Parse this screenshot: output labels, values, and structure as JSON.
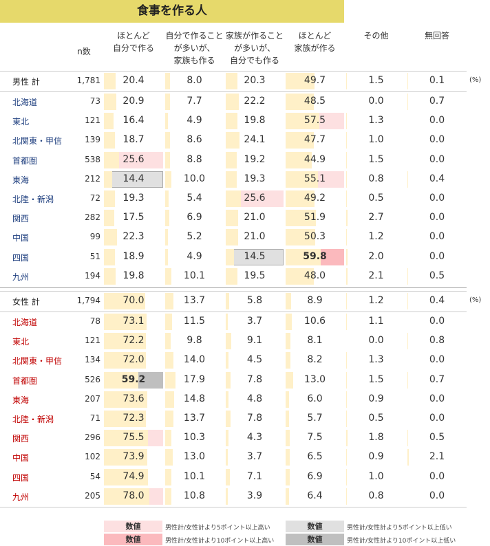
{
  "title": "食事を作る人",
  "headers": [
    [
      "n数"
    ],
    [
      "ほとんど",
      "自分で作る"
    ],
    [
      "自分で作ること",
      "が多いが、",
      "家族も作る"
    ],
    [
      "家族が作ること",
      "が多いが、",
      "自分でも作る"
    ],
    [
      "ほとんど",
      "家族が作る"
    ],
    [
      "その他"
    ],
    [
      "無回答"
    ]
  ],
  "unit": "(%)",
  "legend": [
    {
      "swatch": "数値",
      "text": "男性計/女性計より5ポイント以上高い",
      "color": "#fde0e1",
      "bold": false
    },
    {
      "swatch": "数値",
      "text": "男性計/女性計より10ポイント以上高い",
      "color": "#fbb9bd",
      "bold": true
    },
    {
      "swatch": "数値",
      "text": "男性計/女性計より5ポイント以上低い",
      "color": "#e0e0e0",
      "bold": false
    },
    {
      "swatch": "数値",
      "text": "男性計/女性計より10ポイント以上低い",
      "color": "#bfbfbf",
      "bold": true
    }
  ],
  "sections": [
    {
      "label_color": "#1f3f7f",
      "total": {
        "label": "男性 計",
        "n": "1,781",
        "values": [
          "20.4",
          "8.0",
          "20.3",
          "49.7",
          "1.5",
          "0.1"
        ]
      },
      "rows": [
        {
          "label": "北海道",
          "n": "73",
          "values": [
            "20.9",
            "7.7",
            "22.2",
            "48.5",
            "0.0",
            "0.7"
          ]
        },
        {
          "label": "東北",
          "n": "121",
          "values": [
            "16.4",
            "4.9",
            "19.8",
            "57.5",
            "1.3",
            "0.0"
          ],
          "fills": [
            null,
            null,
            null,
            "#fde0e1",
            null,
            null
          ]
        },
        {
          "label": "北関東・甲信",
          "n": "139",
          "values": [
            "18.7",
            "8.6",
            "24.1",
            "47.7",
            "1.0",
            "0.0"
          ]
        },
        {
          "label": "首都圏",
          "n": "538",
          "values": [
            "25.6",
            "8.8",
            "19.2",
            "44.9",
            "1.5",
            "0.0"
          ],
          "fills": [
            "#fde0e1",
            null,
            null,
            null,
            null,
            null
          ]
        },
        {
          "label": "東海",
          "n": "212",
          "values": [
            "14.4",
            "10.0",
            "19.3",
            "55.1",
            "0.8",
            "0.4"
          ],
          "fills": [
            "#e0e0e0",
            null,
            null,
            "#fde0e1",
            null,
            null
          ]
        },
        {
          "label": "北陸・新潟",
          "n": "72",
          "values": [
            "19.3",
            "5.4",
            "25.6",
            "49.2",
            "0.5",
            "0.0"
          ],
          "fills": [
            null,
            null,
            "#fde0e1",
            null,
            null,
            null
          ]
        },
        {
          "label": "関西",
          "n": "282",
          "values": [
            "17.5",
            "6.9",
            "21.0",
            "51.9",
            "2.7",
            "0.0"
          ]
        },
        {
          "label": "中国",
          "n": "99",
          "values": [
            "22.3",
            "5.2",
            "21.0",
            "50.3",
            "1.2",
            "0.0"
          ]
        },
        {
          "label": "四国",
          "n": "51",
          "values": [
            "18.9",
            "4.9",
            "14.5",
            "59.8",
            "2.0",
            "0.0"
          ],
          "fills": [
            null,
            null,
            "#e0e0e0",
            "#fbb9bd",
            null,
            null
          ]
        },
        {
          "label": "九州",
          "n": "194",
          "values": [
            "19.8",
            "10.1",
            "19.5",
            "48.0",
            "2.1",
            "0.5"
          ]
        }
      ]
    },
    {
      "label_color": "#c00000",
      "total": {
        "label": "女性 計",
        "n": "1,794",
        "values": [
          "70.0",
          "13.7",
          "5.8",
          "8.9",
          "1.2",
          "0.4"
        ]
      },
      "rows": [
        {
          "label": "北海道",
          "n": "78",
          "values": [
            "73.1",
            "11.5",
            "3.7",
            "10.6",
            "1.1",
            "0.0"
          ]
        },
        {
          "label": "東北",
          "n": "121",
          "values": [
            "72.2",
            "9.8",
            "9.1",
            "8.1",
            "0.0",
            "0.8"
          ]
        },
        {
          "label": "北関東・甲信",
          "n": "134",
          "values": [
            "72.0",
            "14.0",
            "4.5",
            "8.2",
            "1.3",
            "0.0"
          ]
        },
        {
          "label": "首都圏",
          "n": "526",
          "values": [
            "59.2",
            "17.9",
            "7.8",
            "13.0",
            "1.5",
            "0.7"
          ],
          "fills": [
            "#bfbfbf",
            null,
            null,
            null,
            null,
            null
          ]
        },
        {
          "label": "東海",
          "n": "207",
          "values": [
            "73.6",
            "14.8",
            "4.8",
            "6.0",
            "0.9",
            "0.0"
          ]
        },
        {
          "label": "北陸・新潟",
          "n": "71",
          "values": [
            "72.3",
            "13.7",
            "7.8",
            "5.7",
            "0.5",
            "0.0"
          ]
        },
        {
          "label": "関西",
          "n": "296",
          "values": [
            "75.5",
            "10.3",
            "4.3",
            "7.5",
            "1.8",
            "0.5"
          ],
          "fills": [
            "#fde0e1",
            null,
            null,
            null,
            null,
            null
          ]
        },
        {
          "label": "中国",
          "n": "102",
          "values": [
            "73.9",
            "13.0",
            "3.7",
            "6.5",
            "0.9",
            "2.1"
          ]
        },
        {
          "label": "四国",
          "n": "54",
          "values": [
            "74.9",
            "10.1",
            "7.1",
            "6.9",
            "1.0",
            "0.0"
          ]
        },
        {
          "label": "九州",
          "n": "205",
          "values": [
            "78.0",
            "10.8",
            "3.9",
            "6.4",
            "0.8",
            "0.0"
          ],
          "fills": [
            "#fde0e1",
            null,
            null,
            null,
            null,
            null
          ]
        }
      ]
    }
  ]
}
